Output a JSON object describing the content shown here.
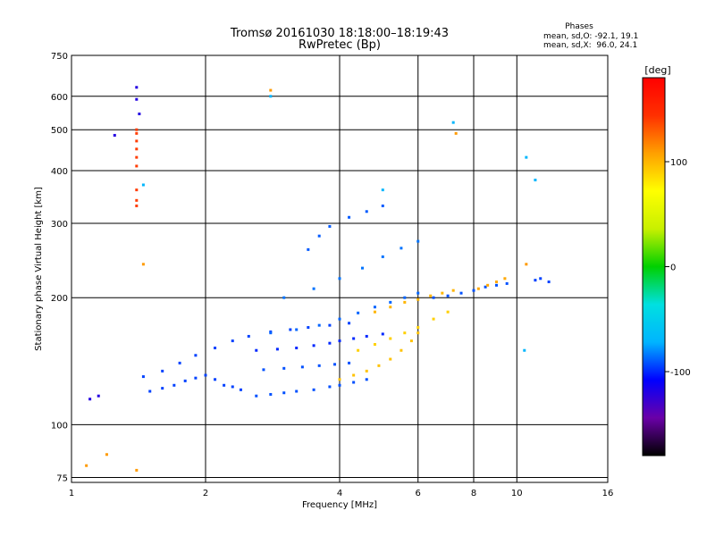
{
  "chart_data": {
    "type": "scatter",
    "title": "Tromsø 20161030 18:18:00–18:19:43",
    "subtitle": "RwPretec (Bp)",
    "xlabel": "Frequency [MHz]",
    "ylabel": "Stationary phase Virtual Height [km]",
    "x_scale": "log",
    "y_scale": "log",
    "xlim": [
      1,
      16
    ],
    "ylim": [
      73,
      750
    ],
    "x_ticks": [
      "1",
      "2",
      "4",
      "6",
      "8",
      "10",
      "16"
    ],
    "x_tick_values": [
      1,
      2,
      4,
      6,
      8,
      10,
      16
    ],
    "y_ticks": [
      "75",
      "100",
      "200",
      "300",
      "400",
      "500",
      "600",
      "750"
    ],
    "y_tick_values": [
      75,
      100,
      200,
      300,
      400,
      500,
      600,
      750
    ],
    "grid": true,
    "phase_stats": {
      "heading": "Phases",
      "o_line": "mean, sd,O: -92.1, 19.1",
      "x_line": "mean, sd,X:  96.0, 24.1"
    },
    "colorbar": {
      "label": "[deg]",
      "range": [
        -180,
        180
      ],
      "ticks": [
        "100",
        "0",
        "-100"
      ],
      "tick_values": [
        100,
        0,
        -100
      ],
      "colormap": [
        "#000000",
        "#6a00a8",
        "#0000ff",
        "#00b4ff",
        "#00e0e0",
        "#00d000",
        "#c8f000",
        "#ffff00",
        "#ffa000",
        "#ff3000",
        "#ff0000"
      ]
    },
    "traces": [
      {
        "name": "",
        "phase": -95,
        "points": [
          [
            1.5,
            120
          ],
          [
            1.6,
            122
          ],
          [
            1.7,
            124
          ],
          [
            1.8,
            127
          ],
          [
            1.9,
            129
          ],
          [
            2.0,
            131
          ],
          [
            2.1,
            128
          ],
          [
            2.2,
            124
          ],
          [
            2.3,
            123
          ],
          [
            2.4,
            121
          ]
        ]
      },
      {
        "name": "",
        "phase": -95,
        "points": [
          [
            1.45,
            130
          ],
          [
            1.6,
            134
          ],
          [
            1.75,
            140
          ],
          [
            1.9,
            146
          ],
          [
            2.1,
            152
          ],
          [
            2.3,
            158
          ],
          [
            2.5,
            162
          ],
          [
            2.8,
            166
          ],
          [
            3.1,
            168
          ],
          [
            3.4,
            170
          ],
          [
            3.8,
            172
          ],
          [
            4.2,
            174
          ]
        ]
      },
      {
        "name": "",
        "phase": -92,
        "points": [
          [
            2.6,
            117
          ],
          [
            2.8,
            118
          ],
          [
            3.0,
            119
          ],
          [
            3.2,
            120
          ],
          [
            3.5,
            121
          ],
          [
            3.8,
            123
          ],
          [
            4.0,
            124
          ],
          [
            4.3,
            126
          ],
          [
            4.6,
            128
          ]
        ]
      },
      {
        "name": "",
        "phase": -100,
        "points": [
          [
            2.6,
            150
          ],
          [
            2.9,
            151
          ],
          [
            3.2,
            152
          ],
          [
            3.5,
            154
          ],
          [
            3.8,
            156
          ],
          [
            4.0,
            158
          ],
          [
            4.3,
            160
          ],
          [
            4.6,
            162
          ],
          [
            5.0,
            164
          ]
        ]
      },
      {
        "name": "",
        "phase": -92,
        "points": [
          [
            2.7,
            135
          ],
          [
            3.0,
            136
          ],
          [
            3.3,
            137
          ],
          [
            3.6,
            138
          ],
          [
            3.9,
            139
          ],
          [
            4.2,
            140
          ]
        ]
      },
      {
        "name": "",
        "phase": -88,
        "points": [
          [
            2.8,
            165
          ],
          [
            3.2,
            168
          ],
          [
            3.6,
            172
          ],
          [
            4.0,
            178
          ],
          [
            4.4,
            184
          ],
          [
            4.8,
            190
          ],
          [
            5.2,
            195
          ],
          [
            5.6,
            200
          ],
          [
            6.0,
            205
          ]
        ]
      },
      {
        "name": "",
        "phase": -85,
        "points": [
          [
            3.0,
            200
          ],
          [
            3.5,
            210
          ],
          [
            4.0,
            222
          ],
          [
            4.5,
            235
          ],
          [
            5.0,
            250
          ],
          [
            5.5,
            262
          ],
          [
            6.0,
            272
          ]
        ]
      },
      {
        "name": "",
        "phase": -92,
        "points": [
          [
            6.5,
            200
          ],
          [
            7.0,
            202
          ],
          [
            7.5,
            205
          ],
          [
            8.0,
            208
          ],
          [
            8.5,
            212
          ],
          [
            9.0,
            214
          ],
          [
            9.5,
            216
          ]
        ]
      },
      {
        "name": "",
        "phase": -90,
        "points": [
          [
            3.4,
            260
          ],
          [
            3.6,
            280
          ],
          [
            3.8,
            295
          ],
          [
            4.2,
            310
          ],
          [
            4.6,
            320
          ],
          [
            5.0,
            330
          ]
        ]
      },
      {
        "name": "",
        "phase": -95,
        "points": [
          [
            11,
            220
          ],
          [
            11.3,
            222
          ],
          [
            11.8,
            218
          ]
        ]
      },
      {
        "name": "",
        "phase": 95,
        "points": [
          [
            4.0,
            128
          ],
          [
            4.3,
            131
          ],
          [
            4.6,
            134
          ],
          [
            4.9,
            138
          ],
          [
            5.2,
            143
          ],
          [
            5.5,
            150
          ],
          [
            5.8,
            158
          ],
          [
            6.0,
            165
          ]
        ]
      },
      {
        "name": "",
        "phase": 90,
        "points": [
          [
            4.4,
            150
          ],
          [
            4.8,
            155
          ],
          [
            5.2,
            160
          ],
          [
            5.6,
            165
          ],
          [
            6.0,
            170
          ],
          [
            6.5,
            178
          ],
          [
            7.0,
            185
          ]
        ]
      },
      {
        "name": "",
        "phase": 100,
        "points": [
          [
            4.8,
            185
          ],
          [
            5.2,
            190
          ],
          [
            5.6,
            195
          ],
          [
            6.0,
            198
          ],
          [
            6.4,
            202
          ],
          [
            6.8,
            205
          ],
          [
            7.2,
            208
          ]
        ]
      },
      {
        "name": "",
        "phase": 105,
        "points": [
          [
            8.2,
            210
          ],
          [
            8.6,
            214
          ],
          [
            9.0,
            218
          ],
          [
            9.4,
            222
          ]
        ]
      },
      {
        "name": "",
        "phase": 140,
        "points": [
          [
            1.4,
            330
          ],
          [
            1.4,
            340
          ],
          [
            1.4,
            360
          ],
          [
            1.4,
            410
          ],
          [
            1.4,
            430
          ],
          [
            1.4,
            450
          ],
          [
            1.4,
            470
          ],
          [
            1.4,
            490
          ],
          [
            1.4,
            500
          ]
        ]
      },
      {
        "name": "",
        "phase": -120,
        "points": [
          [
            1.4,
            590
          ],
          [
            1.4,
            630
          ],
          [
            1.42,
            545
          ],
          [
            1.1,
            115
          ],
          [
            1.15,
            117
          ],
          [
            1.25,
            485
          ]
        ]
      },
      {
        "name": "",
        "phase": -70,
        "points": [
          [
            1.45,
            370
          ],
          [
            2.8,
            600
          ],
          [
            5.0,
            360
          ],
          [
            7.2,
            520
          ],
          [
            10.5,
            430
          ],
          [
            11,
            380
          ],
          [
            10.4,
            150
          ]
        ]
      },
      {
        "name": "",
        "phase": 110,
        "points": [
          [
            2.8,
            620
          ],
          [
            7.3,
            490
          ],
          [
            10.5,
            240
          ],
          [
            1.45,
            240
          ],
          [
            1.4,
            78
          ],
          [
            1.2,
            85
          ],
          [
            1.08,
            80
          ]
        ]
      }
    ]
  }
}
